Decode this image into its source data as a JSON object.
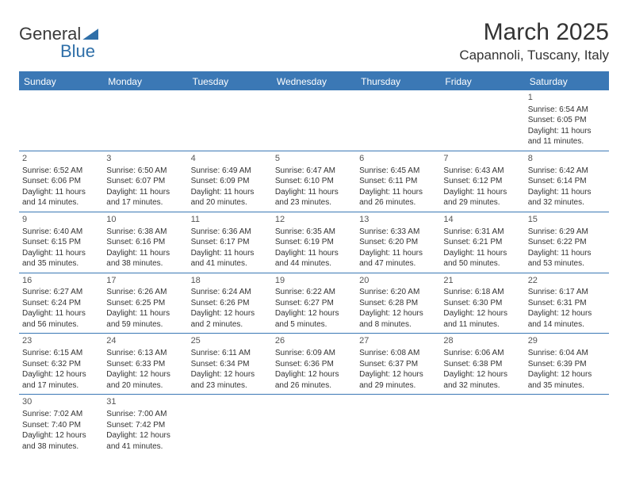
{
  "brand": {
    "part1": "General",
    "part2": "Blue"
  },
  "title": "March 2025",
  "location": "Capannoli, Tuscany, Italy",
  "colors": {
    "header_bg": "#3b78b5",
    "header_text": "#ffffff",
    "body_text": "#333333",
    "border": "#3b78b5",
    "background": "#ffffff"
  },
  "weekdays": [
    "Sunday",
    "Monday",
    "Tuesday",
    "Wednesday",
    "Thursday",
    "Friday",
    "Saturday"
  ],
  "weeks": [
    [
      null,
      null,
      null,
      null,
      null,
      null,
      {
        "n": "1",
        "sr": "Sunrise: 6:54 AM",
        "ss": "Sunset: 6:05 PM",
        "d1": "Daylight: 11 hours",
        "d2": "and 11 minutes."
      }
    ],
    [
      {
        "n": "2",
        "sr": "Sunrise: 6:52 AM",
        "ss": "Sunset: 6:06 PM",
        "d1": "Daylight: 11 hours",
        "d2": "and 14 minutes."
      },
      {
        "n": "3",
        "sr": "Sunrise: 6:50 AM",
        "ss": "Sunset: 6:07 PM",
        "d1": "Daylight: 11 hours",
        "d2": "and 17 minutes."
      },
      {
        "n": "4",
        "sr": "Sunrise: 6:49 AM",
        "ss": "Sunset: 6:09 PM",
        "d1": "Daylight: 11 hours",
        "d2": "and 20 minutes."
      },
      {
        "n": "5",
        "sr": "Sunrise: 6:47 AM",
        "ss": "Sunset: 6:10 PM",
        "d1": "Daylight: 11 hours",
        "d2": "and 23 minutes."
      },
      {
        "n": "6",
        "sr": "Sunrise: 6:45 AM",
        "ss": "Sunset: 6:11 PM",
        "d1": "Daylight: 11 hours",
        "d2": "and 26 minutes."
      },
      {
        "n": "7",
        "sr": "Sunrise: 6:43 AM",
        "ss": "Sunset: 6:12 PM",
        "d1": "Daylight: 11 hours",
        "d2": "and 29 minutes."
      },
      {
        "n": "8",
        "sr": "Sunrise: 6:42 AM",
        "ss": "Sunset: 6:14 PM",
        "d1": "Daylight: 11 hours",
        "d2": "and 32 minutes."
      }
    ],
    [
      {
        "n": "9",
        "sr": "Sunrise: 6:40 AM",
        "ss": "Sunset: 6:15 PM",
        "d1": "Daylight: 11 hours",
        "d2": "and 35 minutes."
      },
      {
        "n": "10",
        "sr": "Sunrise: 6:38 AM",
        "ss": "Sunset: 6:16 PM",
        "d1": "Daylight: 11 hours",
        "d2": "and 38 minutes."
      },
      {
        "n": "11",
        "sr": "Sunrise: 6:36 AM",
        "ss": "Sunset: 6:17 PM",
        "d1": "Daylight: 11 hours",
        "d2": "and 41 minutes."
      },
      {
        "n": "12",
        "sr": "Sunrise: 6:35 AM",
        "ss": "Sunset: 6:19 PM",
        "d1": "Daylight: 11 hours",
        "d2": "and 44 minutes."
      },
      {
        "n": "13",
        "sr": "Sunrise: 6:33 AM",
        "ss": "Sunset: 6:20 PM",
        "d1": "Daylight: 11 hours",
        "d2": "and 47 minutes."
      },
      {
        "n": "14",
        "sr": "Sunrise: 6:31 AM",
        "ss": "Sunset: 6:21 PM",
        "d1": "Daylight: 11 hours",
        "d2": "and 50 minutes."
      },
      {
        "n": "15",
        "sr": "Sunrise: 6:29 AM",
        "ss": "Sunset: 6:22 PM",
        "d1": "Daylight: 11 hours",
        "d2": "and 53 minutes."
      }
    ],
    [
      {
        "n": "16",
        "sr": "Sunrise: 6:27 AM",
        "ss": "Sunset: 6:24 PM",
        "d1": "Daylight: 11 hours",
        "d2": "and 56 minutes."
      },
      {
        "n": "17",
        "sr": "Sunrise: 6:26 AM",
        "ss": "Sunset: 6:25 PM",
        "d1": "Daylight: 11 hours",
        "d2": "and 59 minutes."
      },
      {
        "n": "18",
        "sr": "Sunrise: 6:24 AM",
        "ss": "Sunset: 6:26 PM",
        "d1": "Daylight: 12 hours",
        "d2": "and 2 minutes."
      },
      {
        "n": "19",
        "sr": "Sunrise: 6:22 AM",
        "ss": "Sunset: 6:27 PM",
        "d1": "Daylight: 12 hours",
        "d2": "and 5 minutes."
      },
      {
        "n": "20",
        "sr": "Sunrise: 6:20 AM",
        "ss": "Sunset: 6:28 PM",
        "d1": "Daylight: 12 hours",
        "d2": "and 8 minutes."
      },
      {
        "n": "21",
        "sr": "Sunrise: 6:18 AM",
        "ss": "Sunset: 6:30 PM",
        "d1": "Daylight: 12 hours",
        "d2": "and 11 minutes."
      },
      {
        "n": "22",
        "sr": "Sunrise: 6:17 AM",
        "ss": "Sunset: 6:31 PM",
        "d1": "Daylight: 12 hours",
        "d2": "and 14 minutes."
      }
    ],
    [
      {
        "n": "23",
        "sr": "Sunrise: 6:15 AM",
        "ss": "Sunset: 6:32 PM",
        "d1": "Daylight: 12 hours",
        "d2": "and 17 minutes."
      },
      {
        "n": "24",
        "sr": "Sunrise: 6:13 AM",
        "ss": "Sunset: 6:33 PM",
        "d1": "Daylight: 12 hours",
        "d2": "and 20 minutes."
      },
      {
        "n": "25",
        "sr": "Sunrise: 6:11 AM",
        "ss": "Sunset: 6:34 PM",
        "d1": "Daylight: 12 hours",
        "d2": "and 23 minutes."
      },
      {
        "n": "26",
        "sr": "Sunrise: 6:09 AM",
        "ss": "Sunset: 6:36 PM",
        "d1": "Daylight: 12 hours",
        "d2": "and 26 minutes."
      },
      {
        "n": "27",
        "sr": "Sunrise: 6:08 AM",
        "ss": "Sunset: 6:37 PM",
        "d1": "Daylight: 12 hours",
        "d2": "and 29 minutes."
      },
      {
        "n": "28",
        "sr": "Sunrise: 6:06 AM",
        "ss": "Sunset: 6:38 PM",
        "d1": "Daylight: 12 hours",
        "d2": "and 32 minutes."
      },
      {
        "n": "29",
        "sr": "Sunrise: 6:04 AM",
        "ss": "Sunset: 6:39 PM",
        "d1": "Daylight: 12 hours",
        "d2": "and 35 minutes."
      }
    ],
    [
      {
        "n": "30",
        "sr": "Sunrise: 7:02 AM",
        "ss": "Sunset: 7:40 PM",
        "d1": "Daylight: 12 hours",
        "d2": "and 38 minutes."
      },
      {
        "n": "31",
        "sr": "Sunrise: 7:00 AM",
        "ss": "Sunset: 7:42 PM",
        "d1": "Daylight: 12 hours",
        "d2": "and 41 minutes."
      },
      null,
      null,
      null,
      null,
      null
    ]
  ]
}
